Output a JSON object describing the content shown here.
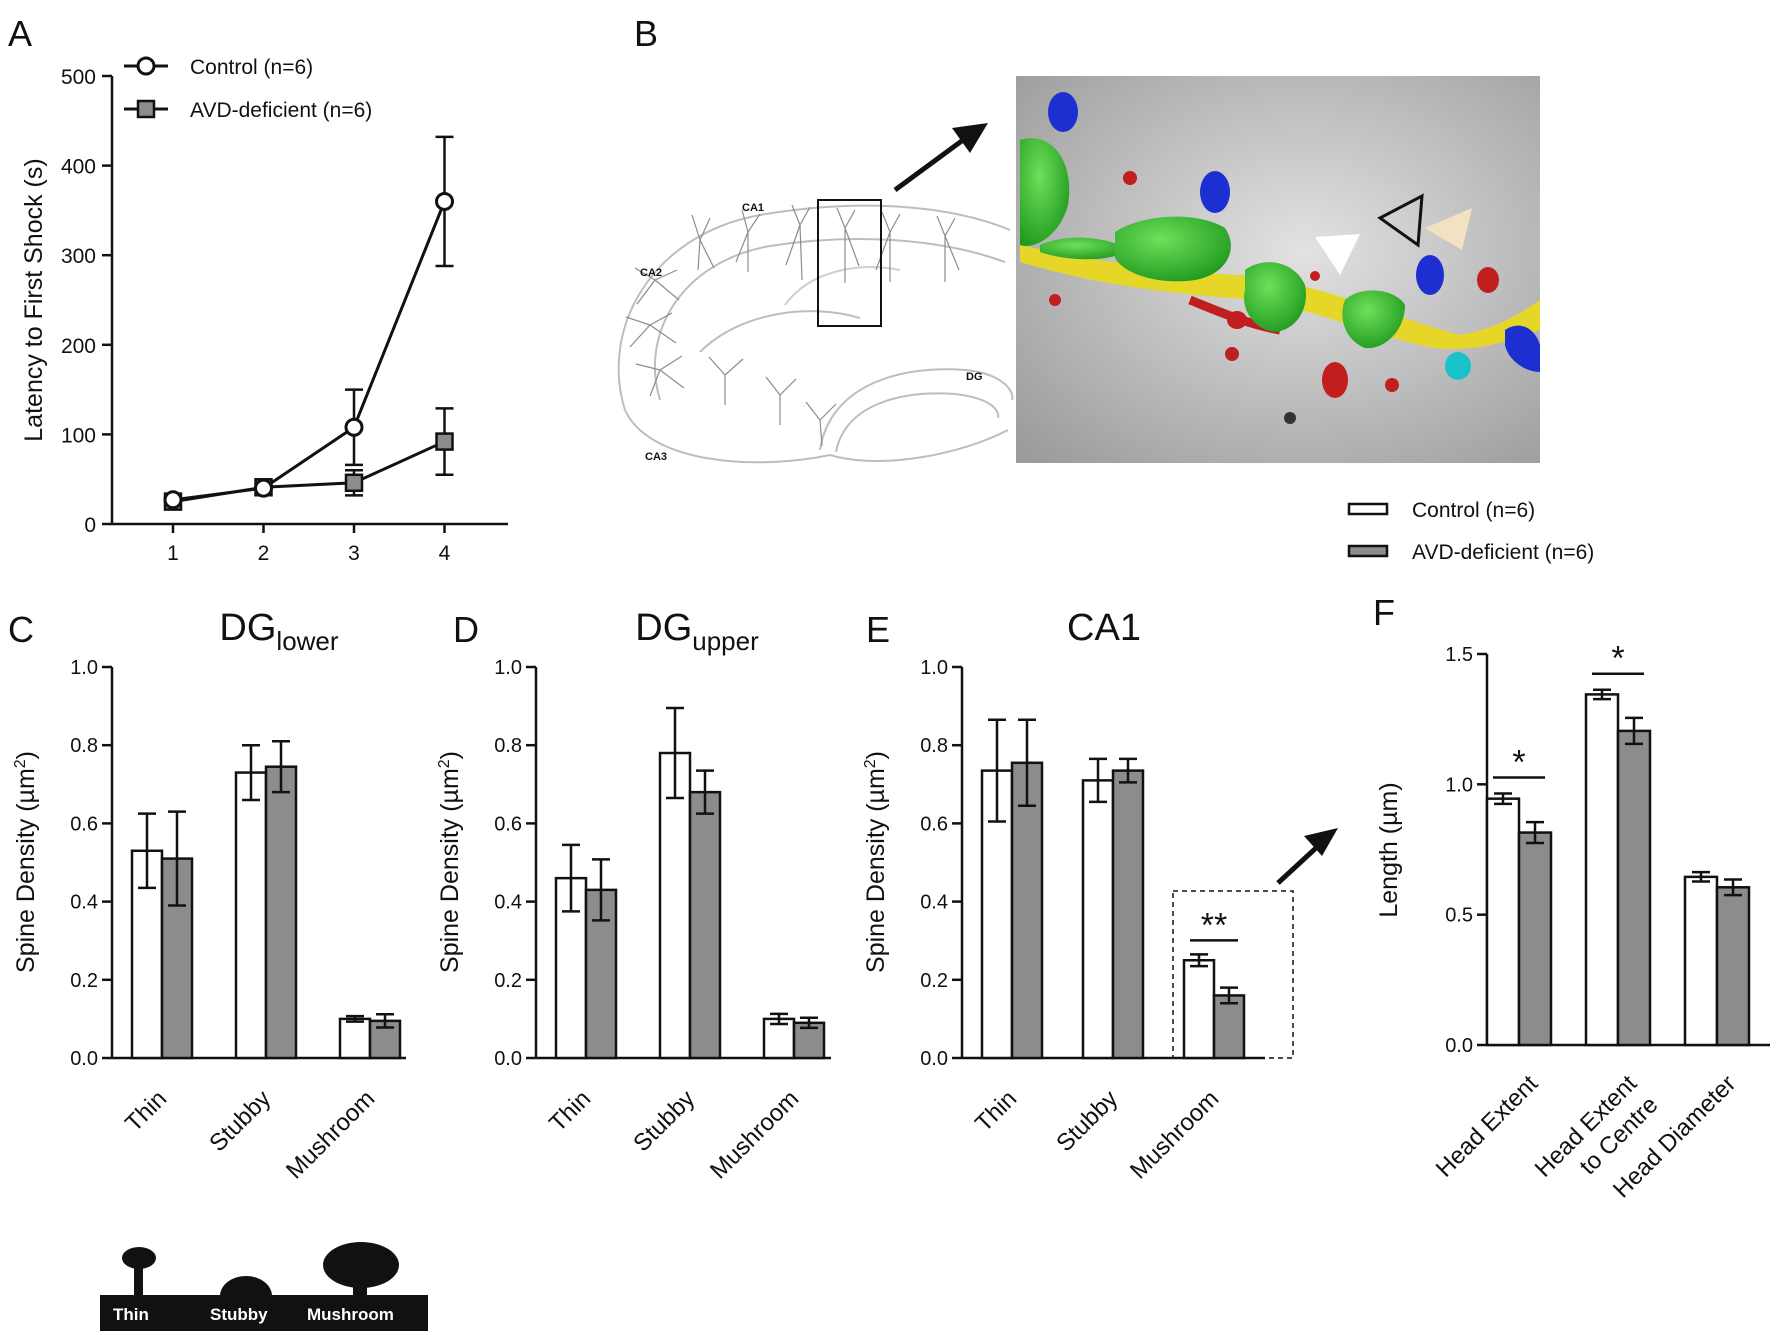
{
  "panel_letters": {
    "a": "A",
    "b": "B",
    "c": "C",
    "d": "D",
    "e": "E",
    "f": "F"
  },
  "legend": {
    "control": "Control (n=6)",
    "avd": "AVD-deficient (n=6)",
    "avd_bar": "AVD-deficient  (n=6)"
  },
  "colors": {
    "control_fill": "#ffffff",
    "avd_fill": "#8c8c8c",
    "stroke": "#111111",
    "line": "#111111"
  },
  "hippocampus": {
    "ca1": "CA1",
    "ca2": "CA2",
    "ca3": "CA3",
    "dg": "DG"
  },
  "spine_types": {
    "thin": "Thin",
    "stubby": "Stubby",
    "mushroom": "Mushroom"
  },
  "chart_data": [
    {
      "panel": "A",
      "type": "line",
      "ylabel": "Latency to First Shock (s)",
      "xlabel": "",
      "x": [
        1,
        2,
        3,
        4
      ],
      "xticks": [
        "1",
        "2",
        "3",
        "4"
      ],
      "ylim": [
        0,
        500
      ],
      "yticks": [
        "0",
        "100",
        "200",
        "300",
        "400",
        "500"
      ],
      "legend_position": "top-left",
      "series": [
        {
          "name": "Control (n=6)",
          "marker": "circle",
          "values": [
            27,
            40,
            108,
            360
          ],
          "errors": [
            4,
            5,
            42,
            72
          ]
        },
        {
          "name": "AVD-deficient (n=6)",
          "marker": "square",
          "values": [
            25,
            41,
            46,
            92
          ],
          "errors": [
            4,
            4,
            14,
            37
          ]
        }
      ]
    },
    {
      "panel": "C",
      "type": "bar",
      "title_main": "DG",
      "title_sub": "lower",
      "ylabel_main": "Spine  Density (µm",
      "ylabel_sup": "2",
      "ylabel_end": ")",
      "categories": [
        "Thin",
        "Stubby",
        "Mushroom"
      ],
      "ylim": [
        0,
        1.0
      ],
      "yticks": [
        "0.0",
        "0.2",
        "0.4",
        "0.6",
        "0.8",
        "1.0"
      ],
      "series": [
        {
          "name": "Control (n=6)",
          "values": [
            0.53,
            0.73,
            0.1
          ],
          "errors": [
            0.095,
            0.07,
            0.007
          ]
        },
        {
          "name": "AVD-deficient  (n=6)",
          "values": [
            0.51,
            0.745,
            0.095
          ],
          "errors": [
            0.12,
            0.065,
            0.017
          ]
        }
      ]
    },
    {
      "panel": "D",
      "type": "bar",
      "title_main": "DG",
      "title_sub": "upper",
      "ylabel_main": "Spine  Density (µm",
      "ylabel_sup": "2",
      "ylabel_end": ")",
      "categories": [
        "Thin",
        "Stubby",
        "Mushroom"
      ],
      "ylim": [
        0,
        1.0
      ],
      "yticks": [
        "0.0",
        "0.2",
        "0.4",
        "0.6",
        "0.8",
        "1.0"
      ],
      "series": [
        {
          "name": "Control (n=6)",
          "values": [
            0.46,
            0.78,
            0.1
          ],
          "errors": [
            0.085,
            0.115,
            0.013
          ]
        },
        {
          "name": "AVD-deficient  (n=6)",
          "values": [
            0.43,
            0.68,
            0.09
          ],
          "errors": [
            0.078,
            0.055,
            0.013
          ]
        }
      ]
    },
    {
      "panel": "E",
      "type": "bar",
      "title_main": "CA1",
      "title_sub": "",
      "ylabel_main": "Spine  Density (µm",
      "ylabel_sup": "2",
      "ylabel_end": ")",
      "categories": [
        "Thin",
        "Stubby",
        "Mushroom"
      ],
      "ylim": [
        0,
        1.0
      ],
      "yticks": [
        "0.0",
        "0.2",
        "0.4",
        "0.6",
        "0.8",
        "1.0"
      ],
      "series": [
        {
          "name": "Control (n=6)",
          "values": [
            0.735,
            0.71,
            0.25
          ],
          "errors": [
            0.13,
            0.055,
            0.015
          ]
        },
        {
          "name": "AVD-deficient  (n=6)",
          "values": [
            0.755,
            0.735,
            0.16
          ],
          "errors": [
            0.11,
            0.03,
            0.02
          ]
        }
      ],
      "annotations": [
        {
          "category": "Mushroom",
          "text": "**"
        }
      ]
    },
    {
      "panel": "F",
      "type": "bar",
      "ylabel": "Length (µm)",
      "categories": [
        [
          "Head Extent"
        ],
        [
          "Head Extent",
          "to Centre"
        ],
        [
          "Head Diameter"
        ]
      ],
      "ylim": [
        0,
        1.5
      ],
      "yticks": [
        "0.0",
        "0.5",
        "1.0",
        "1.5"
      ],
      "series": [
        {
          "name": "Control (n=6)",
          "values": [
            0.945,
            1.345,
            0.645
          ],
          "errors": [
            0.02,
            0.018,
            0.018
          ]
        },
        {
          "name": "AVD-deficient  (n=6)",
          "values": [
            0.815,
            1.205,
            0.605
          ],
          "errors": [
            0.04,
            0.05,
            0.03
          ]
        }
      ],
      "annotations": [
        {
          "category": 0,
          "text": "*"
        },
        {
          "category": 1,
          "text": "*"
        }
      ]
    }
  ]
}
